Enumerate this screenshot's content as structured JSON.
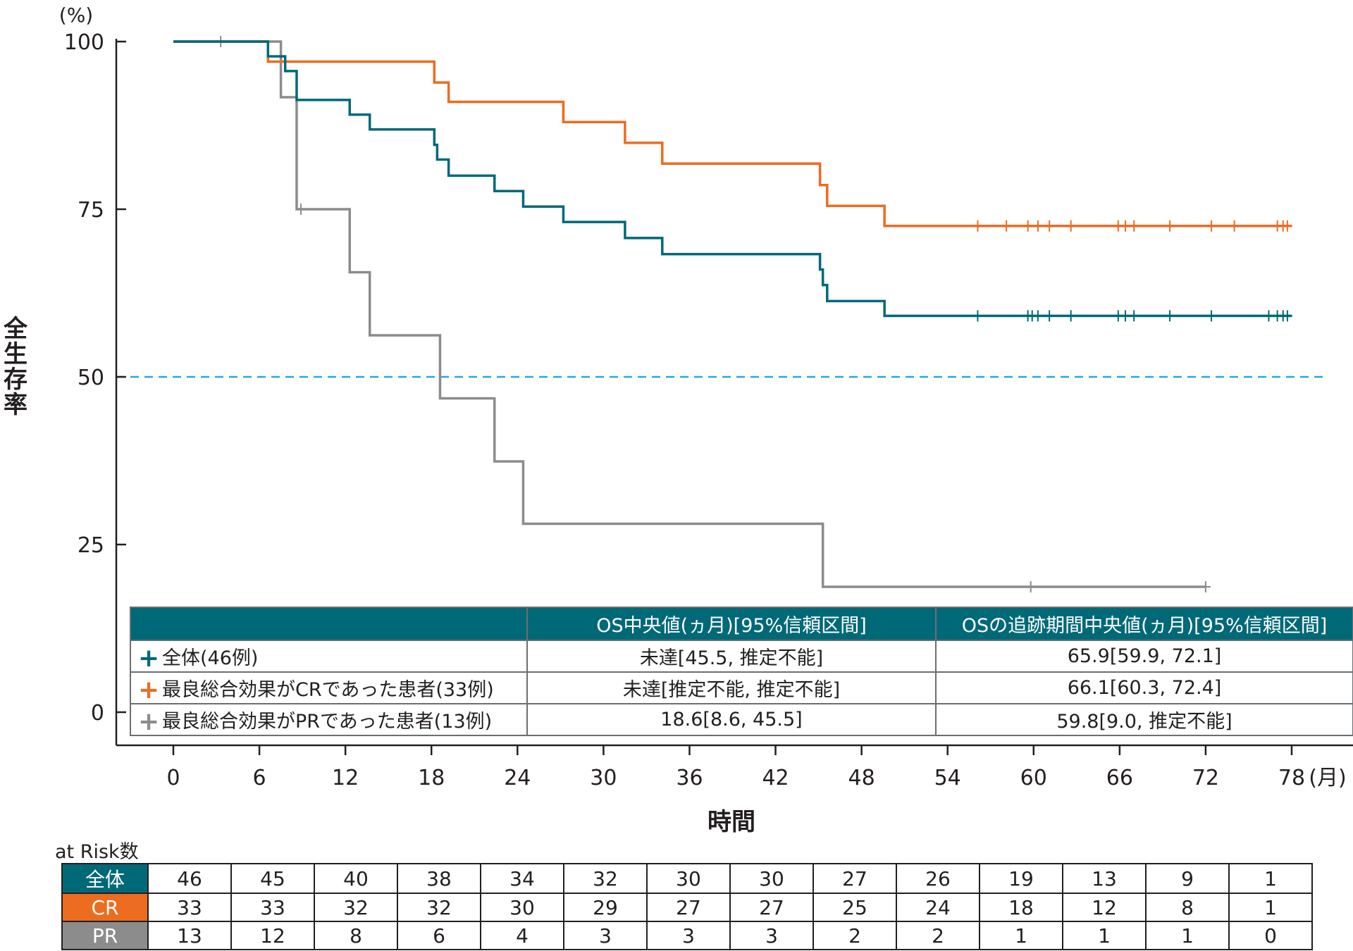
{
  "chart_data": {
    "type": "line",
    "chart_kind": "kaplan-meier step curves with censor marks",
    "y_unit_label": "(%)",
    "ylabel": "全生存率",
    "xlabel": "時間",
    "x_unit_label": "(月)",
    "xlim": [
      0,
      78
    ],
    "ylim": [
      0,
      100
    ],
    "x_ticks": [
      "0",
      "6",
      "12",
      "18",
      "24",
      "30",
      "36",
      "42",
      "48",
      "54",
      "60",
      "66",
      "72",
      "78"
    ],
    "y_ticks": [
      "0",
      "25",
      "50",
      "75",
      "100"
    ],
    "x_tick_values": [
      0,
      6,
      12,
      18,
      24,
      30,
      36,
      42,
      48,
      54,
      60,
      66,
      72,
      78
    ],
    "y_tick_values": [
      0,
      25,
      50,
      75,
      100
    ],
    "reference_line": {
      "y": 50,
      "style": "dashed",
      "color": "#29a8e0"
    },
    "series": [
      {
        "name": "全体(46例)",
        "color": "#006978",
        "steps": [
          [
            0,
            100
          ],
          [
            6.6,
            97.8
          ],
          [
            7.8,
            95.6
          ],
          [
            8.6,
            91.3
          ],
          [
            12.3,
            89.1
          ],
          [
            13.7,
            86.9
          ],
          [
            18.2,
            84.6
          ],
          [
            18.4,
            82.4
          ],
          [
            19.2,
            80.0
          ],
          [
            22.4,
            77.7
          ],
          [
            24.4,
            75.4
          ],
          [
            27.2,
            73.1
          ],
          [
            31.5,
            70.7
          ],
          [
            34.1,
            68.3
          ],
          [
            45.1,
            66.0
          ],
          [
            45.3,
            63.7
          ],
          [
            45.6,
            61.3
          ],
          [
            49.6,
            59.1
          ],
          [
            78,
            59.1
          ]
        ],
        "censored": [
          [
            56.1,
            59.1
          ],
          [
            59.6,
            59.1
          ],
          [
            59.9,
            59.1
          ],
          [
            60.3,
            59.1
          ],
          [
            61.1,
            59.1
          ],
          [
            62.6,
            59.1
          ],
          [
            65.9,
            59.1
          ],
          [
            66.4,
            59.1
          ],
          [
            67.0,
            59.1
          ],
          [
            69.5,
            59.1
          ],
          [
            72.4,
            59.1
          ],
          [
            76.4,
            59.1
          ],
          [
            77.0,
            59.1
          ],
          [
            77.4,
            59.1
          ],
          [
            77.7,
            59.1
          ]
        ]
      },
      {
        "name": "最良総合効果がCRであった患者(33例)",
        "color": "#ec6c20",
        "steps": [
          [
            0,
            100
          ],
          [
            6.6,
            97.0
          ],
          [
            18.2,
            93.9
          ],
          [
            19.2,
            91.0
          ],
          [
            27.2,
            88.0
          ],
          [
            31.5,
            84.9
          ],
          [
            34.1,
            81.8
          ],
          [
            45.1,
            78.6
          ],
          [
            45.6,
            75.5
          ],
          [
            49.6,
            72.5
          ],
          [
            78,
            72.5
          ]
        ],
        "censored": [
          [
            56.1,
            72.5
          ],
          [
            58.1,
            72.5
          ],
          [
            59.6,
            72.5
          ],
          [
            60.3,
            72.5
          ],
          [
            61.1,
            72.5
          ],
          [
            62.6,
            72.5
          ],
          [
            65.9,
            72.5
          ],
          [
            66.4,
            72.5
          ],
          [
            67.0,
            72.5
          ],
          [
            69.5,
            72.5
          ],
          [
            72.4,
            72.5
          ],
          [
            74.0,
            72.5
          ],
          [
            77.0,
            72.5
          ],
          [
            77.4,
            72.5
          ],
          [
            77.7,
            72.5
          ]
        ]
      },
      {
        "name": "最良総合効果がPRであった患者(13例)",
        "color": "#8c8c8c",
        "steps": [
          [
            0,
            100
          ],
          [
            7.5,
            91.7
          ],
          [
            8.6,
            75.0
          ],
          [
            12.3,
            65.6
          ],
          [
            13.7,
            56.2
          ],
          [
            18.6,
            46.8
          ],
          [
            22.4,
            37.4
          ],
          [
            24.4,
            28.1
          ],
          [
            45.3,
            18.7
          ],
          [
            72,
            18.7
          ]
        ],
        "censored": [
          [
            3.3,
            100
          ],
          [
            8.9,
            75.0
          ],
          [
            59.8,
            18.7
          ],
          [
            72,
            18.7
          ]
        ]
      }
    ],
    "summary_table": {
      "headers": [
        "",
        "OS中央値(ヵ月)[95%信頼区間]",
        "OSの追跡期間中央値(ヵ月)[95%信頼区間]"
      ],
      "rows": [
        {
          "label": "全体(46例)",
          "os": "未達[45.5, 推定不能]",
          "followup": "65.9[59.9, 72.1]",
          "color": "#006978"
        },
        {
          "label": "最良総合効果がCRであった患者(33例)",
          "os": "未達[推定不能, 推定不能]",
          "followup": "66.1[60.3, 72.4]",
          "color": "#ec6c20"
        },
        {
          "label": "最良総合効果がPRであった患者(13例)",
          "os": "18.6[8.6, 45.5]",
          "followup": "59.8[9.0, 推定不能]",
          "color": "#8c8c8c"
        }
      ]
    },
    "at_risk": {
      "title": "at Risk数",
      "times": [
        0,
        6,
        12,
        18,
        24,
        30,
        36,
        42,
        48,
        54,
        60,
        66,
        72,
        78
      ],
      "rows": [
        {
          "label": "全体",
          "color": "#006978",
          "values": [
            "46",
            "45",
            "40",
            "38",
            "34",
            "32",
            "30",
            "30",
            "27",
            "26",
            "19",
            "13",
            "9",
            "1"
          ]
        },
        {
          "label": "CR",
          "color": "#ec6c20",
          "values": [
            "33",
            "33",
            "32",
            "32",
            "30",
            "29",
            "27",
            "27",
            "25",
            "24",
            "18",
            "12",
            "8",
            "1"
          ]
        },
        {
          "label": "PR",
          "color": "#8c8c8c",
          "values": [
            "13",
            "12",
            "8",
            "6",
            "4",
            "3",
            "3",
            "3",
            "2",
            "2",
            "1",
            "1",
            "1",
            "0"
          ]
        }
      ]
    }
  }
}
